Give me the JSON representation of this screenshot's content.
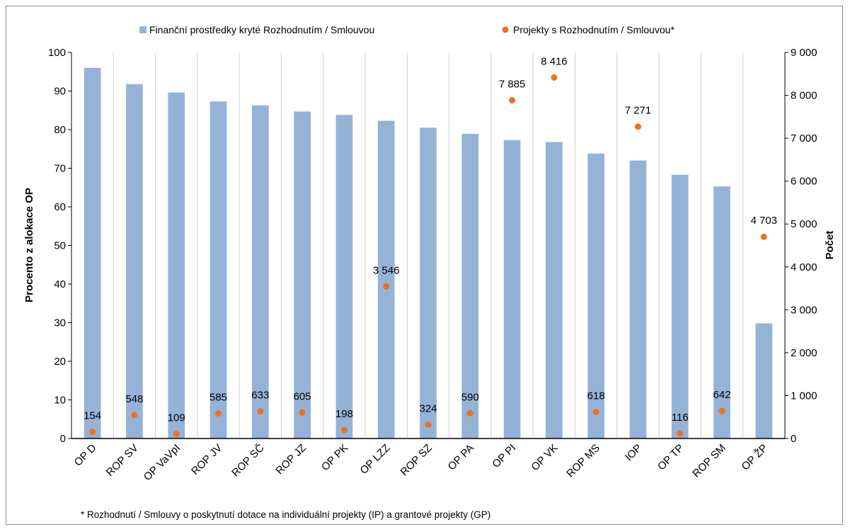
{
  "chart_data": {
    "type": "bar",
    "categories": [
      "OP D",
      "ROP SV",
      "OP VaVpI",
      "ROP JV",
      "ROP SČ",
      "ROP JZ",
      "OP PK",
      "OP LZZ",
      "ROP SZ",
      "OP PA",
      "OP PI",
      "OP VK",
      "ROP MS",
      "IOP",
      "OP TP",
      "ROP SM",
      "OP ŽP"
    ],
    "series": [
      {
        "name": "Finanční prostředky kryté Rozhodnutím  / Smlouvou",
        "axis": "left",
        "type": "bar",
        "color": "#95b3d7",
        "values": [
          96.0,
          91.8,
          89.6,
          87.3,
          86.3,
          84.7,
          83.8,
          82.3,
          80.5,
          78.9,
          77.3,
          76.8,
          73.8,
          72.0,
          68.3,
          65.3,
          29.8
        ]
      },
      {
        "name": "Projekty s Rozhodnutím  / Smlouvou*",
        "axis": "right",
        "type": "scatter",
        "color": "#f07020",
        "values": [
          154,
          548,
          109,
          585,
          633,
          605,
          198,
          3546,
          324,
          590,
          7885,
          8416,
          618,
          7271,
          116,
          642,
          4703
        ],
        "labels": [
          "154",
          "548",
          "109",
          "585",
          "633",
          "605",
          "198",
          "3 546",
          "324",
          "590",
          "7 885",
          "8 416",
          "618",
          "7 271",
          "116",
          "642",
          "4 703"
        ]
      }
    ],
    "ylabel": "Procento z alokace OP",
    "y2label": "Počet",
    "ylim": [
      0,
      100
    ],
    "y2lim": [
      0,
      9000
    ],
    "yticks": [
      "0",
      "10",
      "20",
      "30",
      "40",
      "50",
      "60",
      "70",
      "80",
      "90",
      "100"
    ],
    "y2ticks": [
      "0",
      "1 000",
      "2 000",
      "3 000",
      "4 000",
      "5 000",
      "6 000",
      "7 000",
      "8 000",
      "9 000"
    ],
    "legend_position": "top",
    "grid": "vertical"
  },
  "footnote": "* Rozhodnutí / Smlouvy o poskytnutí  dotace na individuální projekty (IP) a grantové projekty (GP)"
}
